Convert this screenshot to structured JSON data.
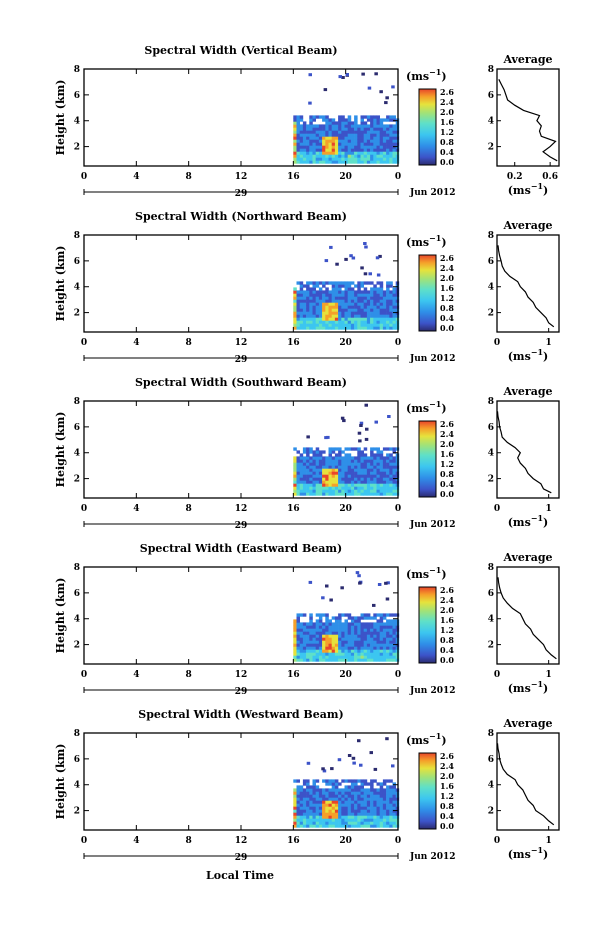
{
  "figure": {
    "x_axis_label": "Local Time",
    "date_label": "Jun 2012",
    "day_label": "29",
    "colorbar_unit": "(ms",
    "unit_exponent": "−1",
    "unit_close": ")",
    "colorbar_ticks": [
      "2.6",
      "2.4",
      "2.0",
      "1.6",
      "1.2",
      "0.8",
      "0.4",
      "0.0"
    ],
    "colors": {
      "scale": [
        "#2b2b6e",
        "#3c53c8",
        "#2f8fe8",
        "#3cc6f0",
        "#5fe0c8",
        "#9fe27a",
        "#e6e23c",
        "#f5a02a",
        "#e8452a"
      ]
    }
  },
  "chart_data": [
    {
      "type": "heatmap",
      "title": "Spectral Width (Vertical Beam)",
      "ylabel": "Height (km)",
      "x_ticks": [
        "0",
        "4",
        "8",
        "12",
        "16",
        "20",
        "0"
      ],
      "xlim": [
        0,
        24
      ],
      "ylim": [
        0.5,
        8
      ],
      "y_ticks": [
        "2",
        "4",
        "6",
        "8"
      ],
      "data_x_range": [
        16,
        24
      ],
      "color_range": [
        0,
        2.6
      ],
      "profile": {
        "title": "Average",
        "xlabel": "(ms",
        "xlim": [
          0,
          0.7
        ],
        "x_ticks": [
          "0.2",
          "0.6"
        ],
        "x_tick_values": [
          0.2,
          0.6
        ],
        "y_ticks": [
          "2",
          "4",
          "6",
          "8"
        ],
        "heights": [
          0.9,
          1.2,
          1.6,
          2.0,
          2.4,
          2.8,
          3.2,
          3.6,
          4.0,
          4.4,
          4.8,
          5.2,
          5.6,
          6.0,
          6.4,
          6.8,
          7.2
        ],
        "values": [
          0.68,
          0.6,
          0.52,
          0.6,
          0.66,
          0.5,
          0.48,
          0.5,
          0.45,
          0.48,
          0.3,
          0.2,
          0.12,
          0.1,
          0.08,
          0.05,
          0.02
        ]
      }
    },
    {
      "type": "heatmap",
      "title": "Spectral Width (Northward Beam)",
      "ylabel": "Height (km)",
      "x_ticks": [
        "0",
        "4",
        "8",
        "12",
        "16",
        "20",
        "0"
      ],
      "xlim": [
        0,
        24
      ],
      "ylim": [
        0.5,
        8
      ],
      "y_ticks": [
        "2",
        "4",
        "6",
        "8"
      ],
      "data_x_range": [
        16,
        24
      ],
      "color_range": [
        0,
        2.6
      ],
      "profile": {
        "title": "Average",
        "xlabel": "(ms",
        "xlim": [
          0,
          1.2
        ],
        "x_ticks": [
          "0",
          "1"
        ],
        "x_tick_values": [
          0,
          1
        ],
        "y_ticks": [
          "2",
          "4",
          "6",
          "8"
        ],
        "heights": [
          0.9,
          1.2,
          1.6,
          2.0,
          2.4,
          2.8,
          3.2,
          3.6,
          4.0,
          4.4,
          4.8,
          5.2,
          5.6,
          6.0,
          6.4,
          6.8,
          7.2
        ],
        "values": [
          1.1,
          1.0,
          0.95,
          0.85,
          0.75,
          0.7,
          0.6,
          0.55,
          0.45,
          0.4,
          0.25,
          0.15,
          0.1,
          0.08,
          0.05,
          0.03,
          0.02
        ]
      }
    },
    {
      "type": "heatmap",
      "title": "Spectral Width (Southward Beam)",
      "ylabel": "Height (km)",
      "x_ticks": [
        "0",
        "4",
        "8",
        "12",
        "16",
        "20",
        "0"
      ],
      "xlim": [
        0,
        24
      ],
      "ylim": [
        0.5,
        8
      ],
      "y_ticks": [
        "2",
        "4",
        "6",
        "8"
      ],
      "data_x_range": [
        16,
        24
      ],
      "color_range": [
        0,
        2.6
      ],
      "profile": {
        "title": "Average",
        "xlabel": "(ms",
        "xlim": [
          0,
          1.2
        ],
        "x_ticks": [
          "0",
          "1"
        ],
        "x_tick_values": [
          0,
          1
        ],
        "y_ticks": [
          "2",
          "4",
          "6",
          "8"
        ],
        "heights": [
          0.9,
          1.2,
          1.6,
          2.0,
          2.4,
          2.8,
          3.2,
          3.6,
          4.0,
          4.4,
          4.8,
          5.2,
          5.6,
          6.0,
          6.4,
          6.8,
          7.2
        ],
        "values": [
          1.05,
          0.9,
          0.85,
          0.7,
          0.6,
          0.55,
          0.45,
          0.4,
          0.45,
          0.35,
          0.2,
          0.1,
          0.08,
          0.05,
          0.04,
          0.02,
          0.01
        ]
      }
    },
    {
      "type": "heatmap",
      "title": "Spectral Width (Eastward Beam)",
      "ylabel": "Height (km)",
      "x_ticks": [
        "0",
        "4",
        "8",
        "12",
        "16",
        "20",
        "0"
      ],
      "xlim": [
        0,
        24
      ],
      "ylim": [
        0.5,
        8
      ],
      "y_ticks": [
        "2",
        "4",
        "6",
        "8"
      ],
      "data_x_range": [
        16,
        24
      ],
      "color_range": [
        0,
        2.6
      ],
      "profile": {
        "title": "Average",
        "xlabel": "(ms",
        "xlim": [
          0,
          1.2
        ],
        "x_ticks": [
          "0",
          "1"
        ],
        "x_tick_values": [
          0,
          1
        ],
        "y_ticks": [
          "2",
          "4",
          "6",
          "8"
        ],
        "heights": [
          0.9,
          1.2,
          1.6,
          2.0,
          2.4,
          2.8,
          3.2,
          3.6,
          4.0,
          4.4,
          4.8,
          5.2,
          5.6,
          6.0,
          6.4,
          6.8,
          7.2
        ],
        "values": [
          1.15,
          1.05,
          0.95,
          0.9,
          0.8,
          0.7,
          0.65,
          0.55,
          0.5,
          0.45,
          0.3,
          0.2,
          0.12,
          0.08,
          0.05,
          0.03,
          0.02
        ]
      }
    },
    {
      "type": "heatmap",
      "title": "Spectral Width (Westward Beam)",
      "ylabel": "Height (km)",
      "x_ticks": [
        "0",
        "4",
        "8",
        "12",
        "16",
        "20",
        "0"
      ],
      "xlim": [
        0,
        24
      ],
      "ylim": [
        0.5,
        8
      ],
      "y_ticks": [
        "2",
        "4",
        "6",
        "8"
      ],
      "data_x_range": [
        16,
        24
      ],
      "color_range": [
        0,
        2.6
      ],
      "profile": {
        "title": "Average",
        "xlabel": "(ms",
        "xlim": [
          0,
          1.2
        ],
        "x_ticks": [
          "0",
          "1"
        ],
        "x_tick_values": [
          0,
          1
        ],
        "y_ticks": [
          "2",
          "4",
          "6",
          "8"
        ],
        "heights": [
          0.9,
          1.2,
          1.6,
          2.0,
          2.4,
          2.8,
          3.2,
          3.6,
          4.0,
          4.4,
          4.8,
          5.2,
          5.6,
          6.0,
          6.4,
          6.8,
          7.2
        ],
        "values": [
          1.1,
          1.0,
          0.9,
          0.75,
          0.7,
          0.6,
          0.55,
          0.5,
          0.4,
          0.35,
          0.2,
          0.12,
          0.08,
          0.05,
          0.04,
          0.02,
          0.01
        ]
      }
    }
  ]
}
